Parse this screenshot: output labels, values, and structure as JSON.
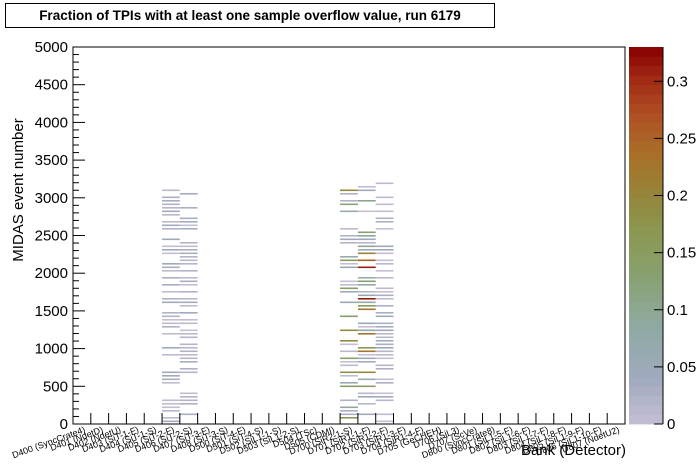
{
  "chart_data": {
    "type": "heatmap",
    "title": "Fraction of TPIs with at least one sample overflow value, run 6179",
    "xlabel": "Bank (Detector)",
    "ylabel": "MIDAS event number",
    "ylim": [
      0,
      5000
    ],
    "y_ticks": [
      0,
      500,
      1000,
      1500,
      2000,
      2500,
      3000,
      3500,
      4000,
      4500,
      5000
    ],
    "z_range": [
      0,
      0.33
    ],
    "z_ticks": [
      0,
      0.05,
      0.1,
      0.15,
      0.2,
      0.25,
      0.3
    ],
    "n_bins": 31,
    "categories": [
      "D400 (SyncCrate4)",
      "D401 (NdetD)",
      "D402 (NdetU)",
      "D403 (SiT-1-F)",
      "D404 (SiT-1-S)",
      "D405 (SiT-2-F)",
      "D406 (SiT-2-S)",
      "D407 (SiT-3-F)",
      "D408 (SiT-3-S)",
      "D500 (SiT-4-F)",
      "D501 (SiT-4-S)",
      "D502 (SiL1-1-S)",
      "D503 (SiL1-2-S)",
      "D504 (TSc)",
      "D505 (CDMI)",
      "D700 (SiR2-1-S)",
      "D701 (SiR1-1-F)",
      "D702 (SiR1-2-F)",
      "D703 (SiR1-3-F)",
      "D704 (SiR1-4-F)",
      "D705 (GeCHEH)",
      "D706 (SiL3)",
      "D707 (ScVe)",
      "D800 (SyncCrate8)",
      "D801 (SiL1-5-F)",
      "D802 (SiL1-6-F)",
      "D803 (SiL1-7-F)",
      "D804 (SiL1-8-F)",
      "D805 (SiL1-9-F)",
      "D806 (SiL1-10-F)",
      "D807 (NdetU2)"
    ],
    "filled_columns": [
      {
        "bin": 5,
        "y_max": 3200,
        "max_fraction": 0.05
      },
      {
        "bin": 6,
        "y_max": 3190,
        "max_fraction": 0.04
      },
      {
        "bin": 15,
        "y_max": 3200,
        "max_fraction": 0.22
      },
      {
        "bin": 16,
        "y_max": 3200,
        "max_fraction": 0.32
      },
      {
        "bin": 17,
        "y_max": 3210,
        "max_fraction": 0.05
      }
    ],
    "grid": false,
    "colorbar": "right"
  }
}
